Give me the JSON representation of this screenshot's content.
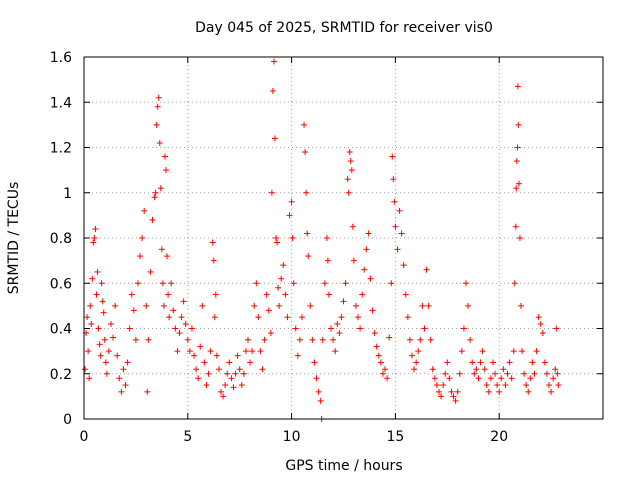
{
  "chart_data": {
    "type": "scatter",
    "title": "Day 045 of 2025, SRMTID for receiver vis0",
    "xlabel": "GPS time / hours",
    "ylabel": "SRMTID / TECUs",
    "xlim": [
      0,
      25
    ],
    "ylim": [
      0,
      1.6
    ],
    "xticks": [
      0,
      5,
      10,
      15,
      20
    ],
    "xtick_labels": [
      "0",
      "5",
      "10",
      "15",
      "20"
    ],
    "yticks": [
      0,
      0.2,
      0.4,
      0.6,
      0.8,
      1.0,
      1.2,
      1.4,
      1.6
    ],
    "ytick_labels": [
      "0",
      "0.2",
      "0.4",
      "0.6",
      "0.8",
      "1",
      "1.2",
      "1.4",
      "1.6"
    ],
    "grid": true,
    "marker": "+",
    "color": "#ff0000",
    "series": [
      {
        "name": "SRMTID",
        "points": [
          [
            0.05,
            0.22
          ],
          [
            0.1,
            0.38
          ],
          [
            0.15,
            0.45
          ],
          [
            0.2,
            0.3
          ],
          [
            0.25,
            0.18
          ],
          [
            0.3,
            0.5
          ],
          [
            0.35,
            0.42
          ],
          [
            0.4,
            0.62
          ],
          [
            0.45,
            0.78
          ],
          [
            0.5,
            0.8
          ],
          [
            0.55,
            0.84
          ],
          [
            0.6,
            0.55
          ],
          [
            0.65,
            0.65
          ],
          [
            0.7,
            0.4
          ],
          [
            0.75,
            0.33
          ],
          [
            0.8,
            0.28
          ],
          [
            0.85,
            0.6
          ],
          [
            0.9,
            0.52
          ],
          [
            0.95,
            0.47
          ],
          [
            1.0,
            0.35
          ],
          [
            1.05,
            0.25
          ],
          [
            1.1,
            0.2
          ],
          [
            1.2,
            0.3
          ],
          [
            1.3,
            0.42
          ],
          [
            1.4,
            0.36
          ],
          [
            1.5,
            0.5
          ],
          [
            1.6,
            0.28
          ],
          [
            1.7,
            0.18
          ],
          [
            1.8,
            0.12
          ],
          [
            1.9,
            0.22
          ],
          [
            2.0,
            0.15
          ],
          [
            2.1,
            0.25
          ],
          [
            2.2,
            0.4
          ],
          [
            2.3,
            0.55
          ],
          [
            2.4,
            0.48
          ],
          [
            2.5,
            0.35
          ],
          [
            2.6,
            0.6
          ],
          [
            2.7,
            0.72
          ],
          [
            2.8,
            0.8
          ],
          [
            2.9,
            0.92
          ],
          [
            3.0,
            0.5
          ],
          [
            3.05,
            0.12
          ],
          [
            3.1,
            0.35
          ],
          [
            3.2,
            0.65
          ],
          [
            3.3,
            0.88
          ],
          [
            3.4,
            0.98
          ],
          [
            3.45,
            1.0
          ],
          [
            3.5,
            1.3
          ],
          [
            3.55,
            1.38
          ],
          [
            3.6,
            1.42
          ],
          [
            3.65,
            1.22
          ],
          [
            3.7,
            1.02
          ],
          [
            3.75,
            0.75
          ],
          [
            3.8,
            0.6
          ],
          [
            3.85,
            0.5
          ],
          [
            3.9,
            1.16
          ],
          [
            3.95,
            1.1
          ],
          [
            4.0,
            0.72
          ],
          [
            4.05,
            0.55
          ],
          [
            4.1,
            0.45
          ],
          [
            4.2,
            0.6
          ],
          [
            4.3,
            0.48
          ],
          [
            4.4,
            0.4
          ],
          [
            4.5,
            0.3
          ],
          [
            4.6,
            0.38
          ],
          [
            4.7,
            0.45
          ],
          [
            4.8,
            0.52
          ],
          [
            4.9,
            0.42
          ],
          [
            5.0,
            0.35
          ],
          [
            5.1,
            0.3
          ],
          [
            5.2,
            0.4
          ],
          [
            5.3,
            0.28
          ],
          [
            5.4,
            0.22
          ],
          [
            5.5,
            0.18
          ],
          [
            5.6,
            0.32
          ],
          [
            5.7,
            0.5
          ],
          [
            5.8,
            0.25
          ],
          [
            5.9,
            0.15
          ],
          [
            6.0,
            0.2
          ],
          [
            6.1,
            0.3
          ],
          [
            6.2,
            0.78
          ],
          [
            6.25,
            0.7
          ],
          [
            6.3,
            0.45
          ],
          [
            6.35,
            0.55
          ],
          [
            6.4,
            0.28
          ],
          [
            6.5,
            0.22
          ],
          [
            6.6,
            0.12
          ],
          [
            6.7,
            0.1
          ],
          [
            6.8,
            0.15
          ],
          [
            6.9,
            0.2
          ],
          [
            7.0,
            0.25
          ],
          [
            7.1,
            0.18
          ],
          [
            7.2,
            0.14
          ],
          [
            7.3,
            0.2
          ],
          [
            7.4,
            0.28
          ],
          [
            7.5,
            0.22
          ],
          [
            7.6,
            0.15
          ],
          [
            7.7,
            0.2
          ],
          [
            7.8,
            0.3
          ],
          [
            7.9,
            0.35
          ],
          [
            8.0,
            0.25
          ],
          [
            8.1,
            0.3
          ],
          [
            8.2,
            0.5
          ],
          [
            8.3,
            0.6
          ],
          [
            8.4,
            0.45
          ],
          [
            8.5,
            0.3
          ],
          [
            8.6,
            0.22
          ],
          [
            8.7,
            0.35
          ],
          [
            8.8,
            0.55
          ],
          [
            8.9,
            0.48
          ],
          [
            9.0,
            0.38
          ],
          [
            9.05,
            1.0
          ],
          [
            9.1,
            1.45
          ],
          [
            9.15,
            1.58
          ],
          [
            9.2,
            1.24
          ],
          [
            9.25,
            0.8
          ],
          [
            9.3,
            0.78
          ],
          [
            9.35,
            0.58
          ],
          [
            9.4,
            0.5
          ],
          [
            9.5,
            0.62
          ],
          [
            9.6,
            0.68
          ],
          [
            9.7,
            0.55
          ],
          [
            9.8,
            0.45
          ],
          [
            9.9,
            0.9
          ],
          [
            10.0,
            0.96
          ],
          [
            10.05,
            0.8
          ],
          [
            10.1,
            0.6
          ],
          [
            10.2,
            0.4
          ],
          [
            10.3,
            0.28
          ],
          [
            10.4,
            0.35
          ],
          [
            10.5,
            0.45
          ],
          [
            10.6,
            1.3
          ],
          [
            10.65,
            1.18
          ],
          [
            10.7,
            1.0
          ],
          [
            10.75,
            0.82
          ],
          [
            10.8,
            0.72
          ],
          [
            10.9,
            0.5
          ],
          [
            11.0,
            0.35
          ],
          [
            11.1,
            0.25
          ],
          [
            11.2,
            0.18
          ],
          [
            11.3,
            0.12
          ],
          [
            11.4,
            0.08
          ],
          [
            11.45,
            0.0
          ],
          [
            11.5,
            0.35
          ],
          [
            11.6,
            0.6
          ],
          [
            11.7,
            0.8
          ],
          [
            11.75,
            0.7
          ],
          [
            11.8,
            0.55
          ],
          [
            11.9,
            0.4
          ],
          [
            12.0,
            0.35
          ],
          [
            12.1,
            0.3
          ],
          [
            12.2,
            0.42
          ],
          [
            12.3,
            0.38
          ],
          [
            12.4,
            0.45
          ],
          [
            12.5,
            0.52
          ],
          [
            12.6,
            0.6
          ],
          [
            12.7,
            1.06
          ],
          [
            12.75,
            1.0
          ],
          [
            12.8,
            1.18
          ],
          [
            12.85,
            1.14
          ],
          [
            12.9,
            1.1
          ],
          [
            12.95,
            0.85
          ],
          [
            13.0,
            0.7
          ],
          [
            13.1,
            0.5
          ],
          [
            13.2,
            0.45
          ],
          [
            13.3,
            0.4
          ],
          [
            13.4,
            0.55
          ],
          [
            13.5,
            0.66
          ],
          [
            13.6,
            0.75
          ],
          [
            13.7,
            0.82
          ],
          [
            13.8,
            0.62
          ],
          [
            13.9,
            0.48
          ],
          [
            14.0,
            0.38
          ],
          [
            14.1,
            0.32
          ],
          [
            14.2,
            0.28
          ],
          [
            14.3,
            0.25
          ],
          [
            14.4,
            0.2
          ],
          [
            14.5,
            0.22
          ],
          [
            14.6,
            0.18
          ],
          [
            14.7,
            0.36
          ],
          [
            14.8,
            0.6
          ],
          [
            14.85,
            1.16
          ],
          [
            14.9,
            1.06
          ],
          [
            14.95,
            0.96
          ],
          [
            15.0,
            0.85
          ],
          [
            15.1,
            0.75
          ],
          [
            15.2,
            0.92
          ],
          [
            15.3,
            0.82
          ],
          [
            15.4,
            0.68
          ],
          [
            15.5,
            0.55
          ],
          [
            15.6,
            0.45
          ],
          [
            15.7,
            0.35
          ],
          [
            15.8,
            0.28
          ],
          [
            15.9,
            0.22
          ],
          [
            16.0,
            0.25
          ],
          [
            16.1,
            0.3
          ],
          [
            16.2,
            0.35
          ],
          [
            16.3,
            0.5
          ],
          [
            16.4,
            0.4
          ],
          [
            16.5,
            0.66
          ],
          [
            16.6,
            0.5
          ],
          [
            16.7,
            0.35
          ],
          [
            16.8,
            0.22
          ],
          [
            16.9,
            0.18
          ],
          [
            17.0,
            0.15
          ],
          [
            17.1,
            0.12
          ],
          [
            17.2,
            0.1
          ],
          [
            17.3,
            0.15
          ],
          [
            17.4,
            0.2
          ],
          [
            17.5,
            0.25
          ],
          [
            17.6,
            0.18
          ],
          [
            17.7,
            0.12
          ],
          [
            17.8,
            0.1
          ],
          [
            17.9,
            0.08
          ],
          [
            18.0,
            0.12
          ],
          [
            18.1,
            0.2
          ],
          [
            18.2,
            0.3
          ],
          [
            18.3,
            0.4
          ],
          [
            18.4,
            0.6
          ],
          [
            18.5,
            0.5
          ],
          [
            18.6,
            0.35
          ],
          [
            18.7,
            0.25
          ],
          [
            18.8,
            0.2
          ],
          [
            18.9,
            0.22
          ],
          [
            19.0,
            0.18
          ],
          [
            19.1,
            0.25
          ],
          [
            19.2,
            0.3
          ],
          [
            19.3,
            0.22
          ],
          [
            19.4,
            0.15
          ],
          [
            19.5,
            0.12
          ],
          [
            19.6,
            0.18
          ],
          [
            19.7,
            0.25
          ],
          [
            19.8,
            0.2
          ],
          [
            19.9,
            0.15
          ],
          [
            20.0,
            0.12
          ],
          [
            20.1,
            0.18
          ],
          [
            20.2,
            0.22
          ],
          [
            20.3,
            0.15
          ],
          [
            20.4,
            0.2
          ],
          [
            20.5,
            0.25
          ],
          [
            20.6,
            0.18
          ],
          [
            20.7,
            0.3
          ],
          [
            20.75,
            0.6
          ],
          [
            20.8,
            0.85
          ],
          [
            20.82,
            1.02
          ],
          [
            20.85,
            1.14
          ],
          [
            20.88,
            1.2
          ],
          [
            20.9,
            1.47
          ],
          [
            20.92,
            1.3
          ],
          [
            20.95,
            1.04
          ],
          [
            21.0,
            0.8
          ],
          [
            21.05,
            0.5
          ],
          [
            21.1,
            0.3
          ],
          [
            21.2,
            0.2
          ],
          [
            21.3,
            0.15
          ],
          [
            21.4,
            0.12
          ],
          [
            21.5,
            0.18
          ],
          [
            21.6,
            0.25
          ],
          [
            21.7,
            0.2
          ],
          [
            21.8,
            0.3
          ],
          [
            21.9,
            0.45
          ],
          [
            22.0,
            0.42
          ],
          [
            22.1,
            0.38
          ],
          [
            22.2,
            0.25
          ],
          [
            22.3,
            0.2
          ],
          [
            22.4,
            0.15
          ],
          [
            22.5,
            0.12
          ],
          [
            22.6,
            0.18
          ],
          [
            22.7,
            0.22
          ],
          [
            22.75,
            0.4
          ],
          [
            22.8,
            0.2
          ],
          [
            22.85,
            0.15
          ]
        ]
      }
    ]
  }
}
